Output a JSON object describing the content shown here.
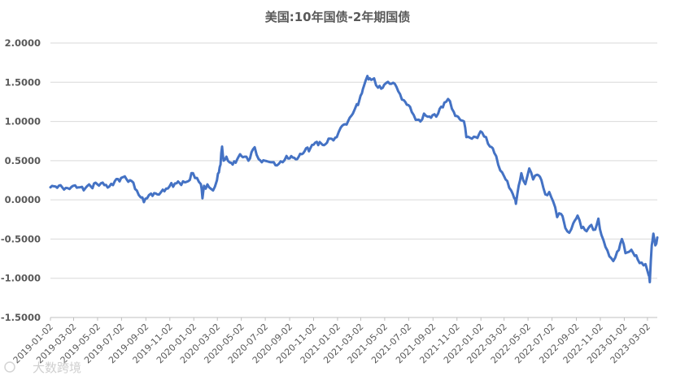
{
  "chart_data": {
    "type": "line",
    "title": "美国:10年国债-2年期国债",
    "xlabel": "",
    "ylabel": "",
    "ylim": [
      -1.5,
      2.0
    ],
    "yticks": [
      "2.0000",
      "1.5000",
      "1.0000",
      "0.5000",
      "0.0000",
      "-0.5000",
      "-1.0000",
      "-1.5000"
    ],
    "ytick_values": [
      2.0,
      1.5,
      1.0,
      0.5,
      0.0,
      -0.5,
      -1.0,
      -1.5
    ],
    "xticks": [
      "2019-01-02",
      "2019-03-02",
      "2019-05-02",
      "2019-07-02",
      "2019-09-02",
      "2019-11-02",
      "2020-01-02",
      "2020-03-02",
      "2020-05-02",
      "2020-07-02",
      "2020-09-02",
      "2020-11-02",
      "2021-01-02",
      "2021-03-02",
      "2021-05-02",
      "2021-07-02",
      "2021-09-02",
      "2021-11-02",
      "2022-01-02",
      "2022-03-02",
      "2022-05-02",
      "2022-07-02",
      "2022-09-02",
      "2022-11-02",
      "2023-01-02",
      "2023-03-02"
    ],
    "xlim": [
      "2019-01-02",
      "2023-03-27"
    ],
    "grid": true,
    "color": "#4472c4",
    "series": [
      {
        "points": [
          [
            "2019-01-02",
            0.16
          ],
          [
            "2019-01-15",
            0.17
          ],
          [
            "2019-02-01",
            0.16
          ],
          [
            "2019-02-15",
            0.15
          ],
          [
            "2019-03-01",
            0.18
          ],
          [
            "2019-03-15",
            0.16
          ],
          [
            "2019-04-01",
            0.15
          ],
          [
            "2019-04-15",
            0.17
          ],
          [
            "2019-05-01",
            0.2
          ],
          [
            "2019-05-15",
            0.22
          ],
          [
            "2019-06-01",
            0.17
          ],
          [
            "2019-06-15",
            0.24
          ],
          [
            "2019-07-01",
            0.28
          ],
          [
            "2019-07-15",
            0.26
          ],
          [
            "2019-08-01",
            0.22
          ],
          [
            "2019-08-10",
            0.12
          ],
          [
            "2019-08-20",
            0.03
          ],
          [
            "2019-08-28",
            -0.03
          ],
          [
            "2019-09-05",
            0.02
          ],
          [
            "2019-09-15",
            0.08
          ],
          [
            "2019-10-01",
            0.07
          ],
          [
            "2019-10-15",
            0.13
          ],
          [
            "2019-11-01",
            0.17
          ],
          [
            "2019-11-15",
            0.21
          ],
          [
            "2019-12-01",
            0.19
          ],
          [
            "2019-12-15",
            0.23
          ],
          [
            "2019-12-31",
            0.34
          ],
          [
            "2020-01-10",
            0.28
          ],
          [
            "2020-01-20",
            0.2
          ],
          [
            "2020-01-24",
            0.02
          ],
          [
            "2020-01-28",
            0.18
          ],
          [
            "2020-02-10",
            0.16
          ],
          [
            "2020-02-20",
            0.12
          ],
          [
            "2020-03-01",
            0.25
          ],
          [
            "2020-03-06",
            0.35
          ],
          [
            "2020-03-10",
            0.45
          ],
          [
            "2020-03-14",
            0.68
          ],
          [
            "2020-03-18",
            0.5
          ],
          [
            "2020-03-25",
            0.55
          ],
          [
            "2020-04-10",
            0.45
          ],
          [
            "2020-04-25",
            0.55
          ],
          [
            "2020-05-10",
            0.55
          ],
          [
            "2020-05-20",
            0.5
          ],
          [
            "2020-06-05",
            0.67
          ],
          [
            "2020-06-15",
            0.52
          ],
          [
            "2020-07-01",
            0.5
          ],
          [
            "2020-07-15",
            0.48
          ],
          [
            "2020-08-01",
            0.44
          ],
          [
            "2020-08-15",
            0.48
          ],
          [
            "2020-08-25",
            0.56
          ],
          [
            "2020-09-10",
            0.54
          ],
          [
            "2020-09-25",
            0.55
          ],
          [
            "2020-10-10",
            0.62
          ],
          [
            "2020-10-25",
            0.66
          ],
          [
            "2020-11-10",
            0.74
          ],
          [
            "2020-11-25",
            0.7
          ],
          [
            "2020-12-10",
            0.78
          ],
          [
            "2020-12-31",
            0.8
          ],
          [
            "2021-01-10",
            0.92
          ],
          [
            "2021-01-25",
            0.96
          ],
          [
            "2021-02-10",
            1.1
          ],
          [
            "2021-02-20",
            1.22
          ],
          [
            "2021-02-26",
            1.26
          ],
          [
            "2021-03-05",
            1.36
          ],
          [
            "2021-03-10",
            1.45
          ],
          [
            "2021-03-19",
            1.58
          ],
          [
            "2021-03-25",
            1.55
          ],
          [
            "2021-04-05",
            1.55
          ],
          [
            "2021-04-15",
            1.43
          ],
          [
            "2021-05-01",
            1.47
          ],
          [
            "2021-05-15",
            1.48
          ],
          [
            "2021-06-01",
            1.44
          ],
          [
            "2021-06-10",
            1.35
          ],
          [
            "2021-06-20",
            1.27
          ],
          [
            "2021-07-01",
            1.21
          ],
          [
            "2021-07-10",
            1.12
          ],
          [
            "2021-07-20",
            1.02
          ],
          [
            "2021-08-01",
            1.0
          ],
          [
            "2021-08-10",
            1.1
          ],
          [
            "2021-08-20",
            1.06
          ],
          [
            "2021-09-01",
            1.08
          ],
          [
            "2021-09-15",
            1.1
          ],
          [
            "2021-10-01",
            1.24
          ],
          [
            "2021-10-15",
            1.26
          ],
          [
            "2021-10-25",
            1.12
          ],
          [
            "2021-11-05",
            1.06
          ],
          [
            "2021-11-20",
            1.0
          ],
          [
            "2021-11-26",
            0.8
          ],
          [
            "2021-12-10",
            0.78
          ],
          [
            "2021-12-20",
            0.8
          ],
          [
            "2022-01-05",
            0.86
          ],
          [
            "2022-01-15",
            0.8
          ],
          [
            "2022-01-25",
            0.68
          ],
          [
            "2022-02-05",
            0.6
          ],
          [
            "2022-02-15",
            0.45
          ],
          [
            "2022-02-25",
            0.35
          ],
          [
            "2022-03-10",
            0.24
          ],
          [
            "2022-03-20",
            0.12
          ],
          [
            "2022-03-28",
            0.02
          ],
          [
            "2022-04-01",
            -0.05
          ],
          [
            "2022-04-08",
            0.18
          ],
          [
            "2022-04-15",
            0.34
          ],
          [
            "2022-04-25",
            0.2
          ],
          [
            "2022-05-05",
            0.4
          ],
          [
            "2022-05-15",
            0.26
          ],
          [
            "2022-05-25",
            0.32
          ],
          [
            "2022-06-05",
            0.25
          ],
          [
            "2022-06-15",
            0.07
          ],
          [
            "2022-06-25",
            0.1
          ],
          [
            "2022-07-05",
            -0.02
          ],
          [
            "2022-07-15",
            -0.22
          ],
          [
            "2022-07-25",
            -0.18
          ],
          [
            "2022-08-05",
            -0.36
          ],
          [
            "2022-08-15",
            -0.42
          ],
          [
            "2022-08-25",
            -0.3
          ],
          [
            "2022-09-05",
            -0.2
          ],
          [
            "2022-09-15",
            -0.36
          ],
          [
            "2022-09-28",
            -0.4
          ],
          [
            "2022-10-10",
            -0.32
          ],
          [
            "2022-10-20",
            -0.38
          ],
          [
            "2022-10-28",
            -0.24
          ],
          [
            "2022-11-05",
            -0.45
          ],
          [
            "2022-11-15",
            -0.6
          ],
          [
            "2022-11-25",
            -0.72
          ],
          [
            "2022-12-05",
            -0.78
          ],
          [
            "2022-12-15",
            -0.66
          ],
          [
            "2022-12-27",
            -0.5
          ],
          [
            "2023-01-05",
            -0.68
          ],
          [
            "2023-01-15",
            -0.66
          ],
          [
            "2023-01-25",
            -0.68
          ],
          [
            "2023-02-05",
            -0.76
          ],
          [
            "2023-02-15",
            -0.8
          ],
          [
            "2023-02-25",
            -0.82
          ],
          [
            "2023-03-05",
            -0.96
          ],
          [
            "2023-03-08",
            -1.05
          ],
          [
            "2023-03-13",
            -0.58
          ],
          [
            "2023-03-17",
            -0.43
          ],
          [
            "2023-03-22",
            -0.58
          ],
          [
            "2023-03-27",
            -0.48
          ]
        ]
      }
    ]
  },
  "watermark": "大数跨境"
}
